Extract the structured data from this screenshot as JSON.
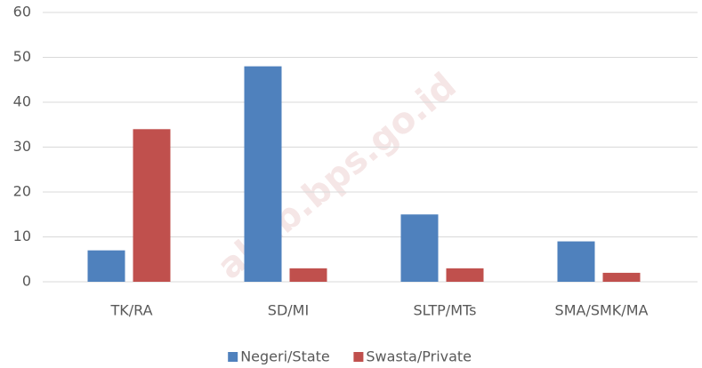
{
  "chart_data": {
    "type": "bar",
    "categories": [
      "TK/RA",
      "SD/MI",
      "SLTP/MTs",
      "SMA/SMK/MA"
    ],
    "series": [
      {
        "name": "Negeri/State",
        "color": "#4f81bd",
        "values": [
          7,
          48,
          15,
          9
        ]
      },
      {
        "name": "Swasta/Private",
        "color": "#c0504d",
        "values": [
          34,
          3,
          3,
          2
        ]
      }
    ],
    "ylim": [
      0,
      60
    ],
    "yticks": [
      0,
      10,
      20,
      30,
      40,
      50,
      60
    ],
    "grid": true,
    "legend": "bottom",
    "watermark": "akab.bps.go.id"
  }
}
